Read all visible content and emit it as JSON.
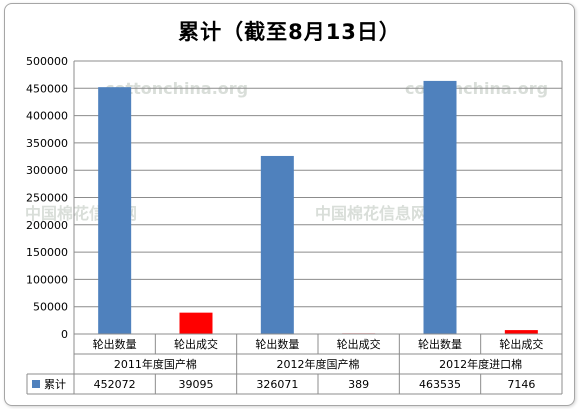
{
  "chart_data": {
    "type": "bar",
    "title": "累计（截至8月13日）",
    "categories": [
      {
        "group": "2011年度国产棉",
        "label": "轮出数量"
      },
      {
        "group": "2011年度国产棉",
        "label": "轮出成交"
      },
      {
        "group": "2012年度国产棉",
        "label": "轮出数量"
      },
      {
        "group": "2012年度国产棉",
        "label": "轮出成交"
      },
      {
        "group": "2012年度进口棉",
        "label": "轮出数量"
      },
      {
        "group": "2012年度进口棉",
        "label": "轮出成交"
      }
    ],
    "groups": [
      "2011年度国产棉",
      "2012年度国产棉",
      "2012年度进口棉"
    ],
    "series": [
      {
        "name": "累计",
        "values": [
          452072,
          39095,
          326071,
          389,
          463535,
          7146
        ]
      }
    ],
    "table_values": [
      "452072",
      "39095",
      "326071",
      "389",
      "463535",
      "7146"
    ],
    "bar_colors": [
      "#4f81bd",
      "#ff0000",
      "#4f81bd",
      "#ff0000",
      "#4f81bd",
      "#ff0000"
    ],
    "legend_color": "#4f81bd",
    "ylim": [
      0,
      500000
    ],
    "yticks": [
      "0",
      "50000",
      "100000",
      "150000",
      "200000",
      "250000",
      "300000",
      "350000",
      "400000",
      "450000",
      "500000"
    ],
    "grid": true,
    "legend": "data-table",
    "watermarks": [
      "cottonchina.org",
      "cottonchina.org",
      "中国棉花信息网",
      "中国棉花信息网"
    ]
  }
}
